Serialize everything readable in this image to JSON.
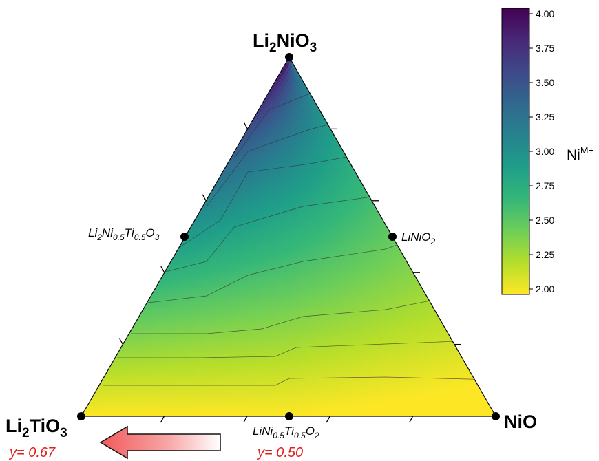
{
  "diagram": {
    "type": "ternary-contour",
    "vertices": {
      "top": {
        "base": "Li",
        "sub1": "2",
        "mid": "NiO",
        "sub2": "3"
      },
      "left": {
        "base": "Li",
        "sub1": "2",
        "mid": "TiO",
        "sub2": "3"
      },
      "right": {
        "text": "NiO"
      }
    },
    "compositions": {
      "left_mid": {
        "p1": "Li",
        "s1": "2",
        "p2": "Ni",
        "s2": "0.5",
        "p3": "Ti",
        "s3": "0.5",
        "p4": "O",
        "s4": "3"
      },
      "right_mid": {
        "p1": "LiNiO",
        "s1": "2"
      },
      "bottom_mid": {
        "p1": "LiNi",
        "s1": "0.5",
        "p2": "Ti",
        "s2": "0.5",
        "p3": "O",
        "s3": "2"
      }
    },
    "y_labels": {
      "left": "y= 0.67",
      "bottom": "y= 0.50"
    },
    "colorbar": {
      "title_base": "Ni",
      "title_sup": "M+",
      "min": 2.0,
      "max": 4.0,
      "ticks": [
        "4.00",
        "3.75",
        "3.50",
        "3.25",
        "3.00",
        "2.75",
        "2.50",
        "2.25",
        "2.00"
      ],
      "colormap": [
        "#fde725",
        "#b5de2b",
        "#6ece58",
        "#35b779",
        "#1f9e89",
        "#26828e",
        "#31688e",
        "#3e4989",
        "#482878",
        "#440154"
      ]
    },
    "colors": {
      "arrow": "#f15a5a",
      "y_label": "#e02020",
      "edge": "#000000"
    }
  }
}
